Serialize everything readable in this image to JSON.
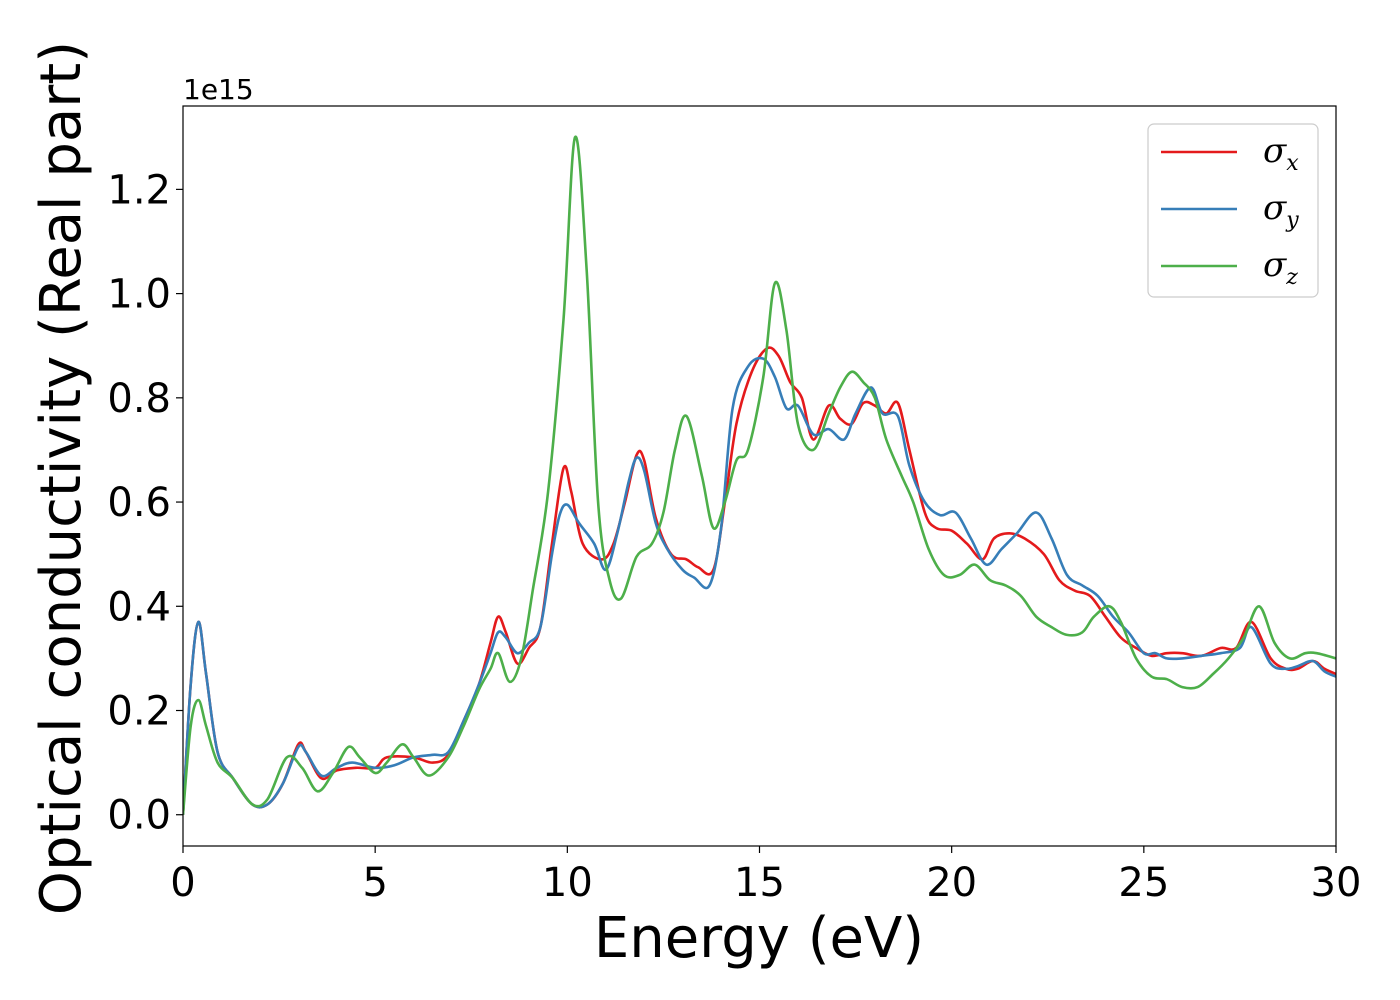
{
  "chart_data": {
    "type": "line",
    "title": "",
    "xlabel": "Energy (eV)",
    "ylabel": "Optical conductivity (Real part)",
    "y_offset_label": "1e15",
    "xlim": [
      0,
      30
    ],
    "ylim": [
      -0.06,
      1.36
    ],
    "xticks": [
      0,
      5,
      10,
      15,
      20,
      25,
      30
    ],
    "yticks": [
      0.0,
      0.2,
      0.4,
      0.6,
      0.8,
      1.0,
      1.2
    ],
    "xtick_labels": [
      "0",
      "5",
      "10",
      "15",
      "20",
      "25",
      "30"
    ],
    "ytick_labels": [
      "0.0",
      "0.2",
      "0.4",
      "0.6",
      "0.8",
      "1.0",
      "1.2"
    ],
    "grid": false,
    "legend_position": "top-right",
    "series": [
      {
        "name": "σx",
        "symbol": "σ",
        "sub": "x",
        "color": "#e41a1c",
        "points": [
          [
            0,
            0
          ],
          [
            0.2,
            0.25
          ],
          [
            0.4,
            0.37
          ],
          [
            0.6,
            0.27
          ],
          [
            0.9,
            0.12
          ],
          [
            1.3,
            0.07
          ],
          [
            1.8,
            0.02
          ],
          [
            2.2,
            0.02
          ],
          [
            2.6,
            0.06
          ],
          [
            3.0,
            0.135
          ],
          [
            3.2,
            0.12
          ],
          [
            3.6,
            0.07
          ],
          [
            4.0,
            0.085
          ],
          [
            4.5,
            0.09
          ],
          [
            5.0,
            0.09
          ],
          [
            5.3,
            0.11
          ],
          [
            6.0,
            0.11
          ],
          [
            6.5,
            0.1
          ],
          [
            6.9,
            0.115
          ],
          [
            7.3,
            0.18
          ],
          [
            7.7,
            0.25
          ],
          [
            8.0,
            0.33
          ],
          [
            8.2,
            0.38
          ],
          [
            8.4,
            0.35
          ],
          [
            8.7,
            0.29
          ],
          [
            9.0,
            0.32
          ],
          [
            9.3,
            0.36
          ],
          [
            9.6,
            0.52
          ],
          [
            9.9,
            0.665
          ],
          [
            10.1,
            0.62
          ],
          [
            10.4,
            0.52
          ],
          [
            10.9,
            0.49
          ],
          [
            11.2,
            0.52
          ],
          [
            11.5,
            0.6
          ],
          [
            11.8,
            0.69
          ],
          [
            12.0,
            0.68
          ],
          [
            12.3,
            0.57
          ],
          [
            12.7,
            0.5
          ],
          [
            13.1,
            0.49
          ],
          [
            13.4,
            0.475
          ],
          [
            13.8,
            0.47
          ],
          [
            14.1,
            0.6
          ],
          [
            14.4,
            0.75
          ],
          [
            14.8,
            0.85
          ],
          [
            15.2,
            0.895
          ],
          [
            15.5,
            0.88
          ],
          [
            15.8,
            0.83
          ],
          [
            16.1,
            0.8
          ],
          [
            16.4,
            0.72
          ],
          [
            16.8,
            0.785
          ],
          [
            17.1,
            0.76
          ],
          [
            17.4,
            0.75
          ],
          [
            17.7,
            0.79
          ],
          [
            18.0,
            0.785
          ],
          [
            18.3,
            0.77
          ],
          [
            18.6,
            0.79
          ],
          [
            18.9,
            0.7
          ],
          [
            19.3,
            0.58
          ],
          [
            19.6,
            0.55
          ],
          [
            20.0,
            0.545
          ],
          [
            20.4,
            0.52
          ],
          [
            20.8,
            0.49
          ],
          [
            21.1,
            0.53
          ],
          [
            21.5,
            0.54
          ],
          [
            21.9,
            0.53
          ],
          [
            22.4,
            0.5
          ],
          [
            22.8,
            0.45
          ],
          [
            23.2,
            0.43
          ],
          [
            23.6,
            0.42
          ],
          [
            24.0,
            0.38
          ],
          [
            24.4,
            0.34
          ],
          [
            24.8,
            0.32
          ],
          [
            25.2,
            0.305
          ],
          [
            25.6,
            0.31
          ],
          [
            26.0,
            0.31
          ],
          [
            26.5,
            0.305
          ],
          [
            27.0,
            0.32
          ],
          [
            27.4,
            0.32
          ],
          [
            27.8,
            0.37
          ],
          [
            28.3,
            0.3
          ],
          [
            28.7,
            0.28
          ],
          [
            29.0,
            0.28
          ],
          [
            29.4,
            0.295
          ],
          [
            29.7,
            0.28
          ],
          [
            30.0,
            0.27
          ]
        ]
      },
      {
        "name": "σy",
        "symbol": "σ",
        "sub": "y",
        "color": "#377eb8",
        "points": [
          [
            0,
            0
          ],
          [
            0.2,
            0.25
          ],
          [
            0.4,
            0.37
          ],
          [
            0.6,
            0.27
          ],
          [
            0.9,
            0.12
          ],
          [
            1.3,
            0.07
          ],
          [
            1.8,
            0.02
          ],
          [
            2.2,
            0.02
          ],
          [
            2.6,
            0.06
          ],
          [
            3.0,
            0.13
          ],
          [
            3.2,
            0.12
          ],
          [
            3.6,
            0.075
          ],
          [
            4.0,
            0.09
          ],
          [
            4.4,
            0.1
          ],
          [
            5.0,
            0.09
          ],
          [
            5.5,
            0.095
          ],
          [
            6.0,
            0.11
          ],
          [
            6.5,
            0.115
          ],
          [
            6.9,
            0.12
          ],
          [
            7.3,
            0.18
          ],
          [
            7.7,
            0.25
          ],
          [
            8.0,
            0.31
          ],
          [
            8.2,
            0.35
          ],
          [
            8.4,
            0.34
          ],
          [
            8.7,
            0.31
          ],
          [
            9.0,
            0.33
          ],
          [
            9.3,
            0.36
          ],
          [
            9.6,
            0.5
          ],
          [
            9.8,
            0.575
          ],
          [
            10.0,
            0.595
          ],
          [
            10.3,
            0.56
          ],
          [
            10.7,
            0.52
          ],
          [
            11.0,
            0.47
          ],
          [
            11.3,
            0.54
          ],
          [
            11.6,
            0.64
          ],
          [
            11.8,
            0.685
          ],
          [
            12.0,
            0.66
          ],
          [
            12.3,
            0.56
          ],
          [
            12.6,
            0.51
          ],
          [
            13.0,
            0.47
          ],
          [
            13.3,
            0.455
          ],
          [
            13.7,
            0.44
          ],
          [
            14.0,
            0.55
          ],
          [
            14.3,
            0.78
          ],
          [
            14.7,
            0.86
          ],
          [
            15.1,
            0.875
          ],
          [
            15.4,
            0.84
          ],
          [
            15.7,
            0.78
          ],
          [
            16.0,
            0.785
          ],
          [
            16.4,
            0.73
          ],
          [
            16.8,
            0.74
          ],
          [
            17.2,
            0.72
          ],
          [
            17.5,
            0.77
          ],
          [
            17.9,
            0.82
          ],
          [
            18.2,
            0.77
          ],
          [
            18.6,
            0.765
          ],
          [
            18.9,
            0.67
          ],
          [
            19.3,
            0.6
          ],
          [
            19.7,
            0.575
          ],
          [
            20.1,
            0.58
          ],
          [
            20.5,
            0.53
          ],
          [
            20.9,
            0.48
          ],
          [
            21.3,
            0.51
          ],
          [
            21.7,
            0.54
          ],
          [
            22.2,
            0.58
          ],
          [
            22.6,
            0.53
          ],
          [
            23.0,
            0.46
          ],
          [
            23.4,
            0.44
          ],
          [
            23.8,
            0.42
          ],
          [
            24.2,
            0.38
          ],
          [
            24.6,
            0.35
          ],
          [
            25.0,
            0.31
          ],
          [
            25.3,
            0.31
          ],
          [
            25.6,
            0.3
          ],
          [
            26.0,
            0.3
          ],
          [
            26.5,
            0.305
          ],
          [
            27.0,
            0.31
          ],
          [
            27.5,
            0.32
          ],
          [
            27.8,
            0.36
          ],
          [
            28.3,
            0.29
          ],
          [
            28.7,
            0.28
          ],
          [
            29.0,
            0.285
          ],
          [
            29.4,
            0.295
          ],
          [
            29.7,
            0.275
          ],
          [
            30.0,
            0.265
          ]
        ]
      },
      {
        "name": "σz",
        "symbol": "σ",
        "sub": "z",
        "color": "#4daf4a",
        "points": [
          [
            0,
            0
          ],
          [
            0.2,
            0.17
          ],
          [
            0.4,
            0.22
          ],
          [
            0.6,
            0.17
          ],
          [
            0.9,
            0.1
          ],
          [
            1.3,
            0.07
          ],
          [
            1.8,
            0.02
          ],
          [
            2.2,
            0.03
          ],
          [
            2.7,
            0.11
          ],
          [
            3.1,
            0.09
          ],
          [
            3.5,
            0.045
          ],
          [
            3.9,
            0.08
          ],
          [
            4.3,
            0.13
          ],
          [
            4.6,
            0.11
          ],
          [
            5.0,
            0.08
          ],
          [
            5.3,
            0.1
          ],
          [
            5.7,
            0.135
          ],
          [
            6.0,
            0.11
          ],
          [
            6.4,
            0.075
          ],
          [
            6.9,
            0.11
          ],
          [
            7.3,
            0.17
          ],
          [
            7.7,
            0.24
          ],
          [
            8.0,
            0.28
          ],
          [
            8.2,
            0.31
          ],
          [
            8.5,
            0.255
          ],
          [
            8.8,
            0.3
          ],
          [
            9.1,
            0.43
          ],
          [
            9.5,
            0.62
          ],
          [
            9.9,
            0.95
          ],
          [
            10.2,
            1.3
          ],
          [
            10.5,
            1.05
          ],
          [
            10.8,
            0.6
          ],
          [
            11.1,
            0.45
          ],
          [
            11.4,
            0.415
          ],
          [
            11.8,
            0.495
          ],
          [
            12.2,
            0.52
          ],
          [
            12.5,
            0.58
          ],
          [
            12.8,
            0.7
          ],
          [
            13.1,
            0.765
          ],
          [
            13.5,
            0.65
          ],
          [
            13.8,
            0.55
          ],
          [
            14.1,
            0.6
          ],
          [
            14.4,
            0.68
          ],
          [
            14.7,
            0.7
          ],
          [
            15.1,
            0.84
          ],
          [
            15.4,
            1.02
          ],
          [
            15.7,
            0.93
          ],
          [
            16.0,
            0.75
          ],
          [
            16.4,
            0.7
          ],
          [
            16.8,
            0.77
          ],
          [
            17.1,
            0.82
          ],
          [
            17.4,
            0.85
          ],
          [
            17.7,
            0.83
          ],
          [
            18.0,
            0.8
          ],
          [
            18.3,
            0.72
          ],
          [
            18.7,
            0.65
          ],
          [
            19.0,
            0.6
          ],
          [
            19.4,
            0.51
          ],
          [
            19.8,
            0.46
          ],
          [
            20.2,
            0.46
          ],
          [
            20.6,
            0.48
          ],
          [
            21.0,
            0.45
          ],
          [
            21.4,
            0.44
          ],
          [
            21.8,
            0.42
          ],
          [
            22.2,
            0.38
          ],
          [
            22.6,
            0.36
          ],
          [
            23.0,
            0.345
          ],
          [
            23.4,
            0.35
          ],
          [
            23.7,
            0.38
          ],
          [
            24.1,
            0.4
          ],
          [
            24.4,
            0.37
          ],
          [
            24.8,
            0.3
          ],
          [
            25.2,
            0.265
          ],
          [
            25.6,
            0.26
          ],
          [
            26.0,
            0.245
          ],
          [
            26.4,
            0.245
          ],
          [
            26.8,
            0.27
          ],
          [
            27.2,
            0.3
          ],
          [
            27.6,
            0.34
          ],
          [
            28.0,
            0.4
          ],
          [
            28.4,
            0.33
          ],
          [
            28.8,
            0.3
          ],
          [
            29.2,
            0.31
          ],
          [
            29.5,
            0.31
          ],
          [
            30.0,
            0.3
          ]
        ]
      }
    ]
  }
}
